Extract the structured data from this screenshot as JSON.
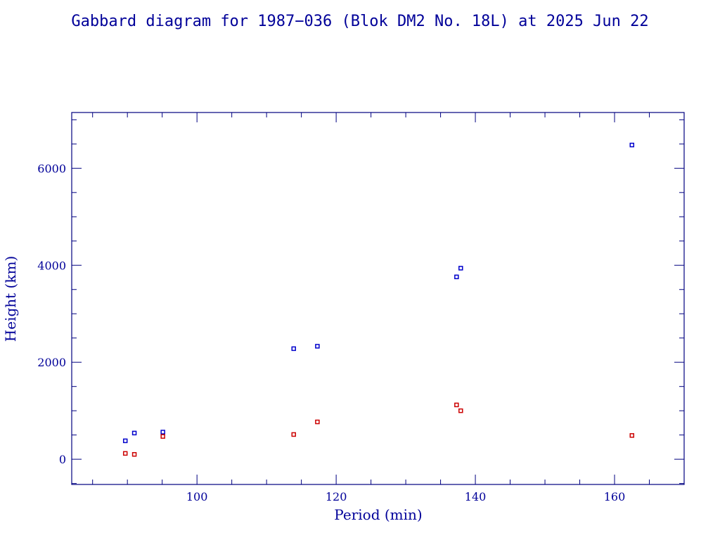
{
  "chart_data": {
    "type": "scatter",
    "title": "Gabbard diagram for 1987−036 (Blok DM2 No. 18L) at 2025 Jun 22",
    "xlabel": "Period (min)",
    "ylabel": "Height (km)",
    "xlim": [
      82,
      170
    ],
    "ylim": [
      -520,
      7150
    ],
    "x_ticks": [
      100,
      120,
      140,
      160
    ],
    "x_tick_labels": [
      "100",
      "120",
      "140",
      "160"
    ],
    "y_ticks": [
      0,
      2000,
      4000,
      6000
    ],
    "y_tick_labels": [
      "0",
      "2000",
      "4000",
      "6000"
    ],
    "x_minor_step": 5,
    "y_minor_step": 500,
    "grid": false,
    "legend": "none",
    "series": [
      {
        "role": "apogee",
        "color": "#0000cc",
        "points": [
          {
            "x": 89.7,
            "y": 380
          },
          {
            "x": 91.0,
            "y": 540
          },
          {
            "x": 95.1,
            "y": 560
          },
          {
            "x": 113.9,
            "y": 2280
          },
          {
            "x": 117.3,
            "y": 2330
          },
          {
            "x": 137.3,
            "y": 3760
          },
          {
            "x": 137.9,
            "y": 3940
          },
          {
            "x": 162.5,
            "y": 6480
          }
        ]
      },
      {
        "role": "perigee",
        "color": "#cc0000",
        "points": [
          {
            "x": 89.7,
            "y": 120
          },
          {
            "x": 91.0,
            "y": 100
          },
          {
            "x": 95.1,
            "y": 470
          },
          {
            "x": 113.9,
            "y": 510
          },
          {
            "x": 117.3,
            "y": 770
          },
          {
            "x": 137.3,
            "y": 1120
          },
          {
            "x": 137.9,
            "y": 1000
          },
          {
            "x": 162.5,
            "y": 490
          }
        ]
      }
    ]
  },
  "colors": {
    "axis": "#000080",
    "text": "#000099"
  }
}
